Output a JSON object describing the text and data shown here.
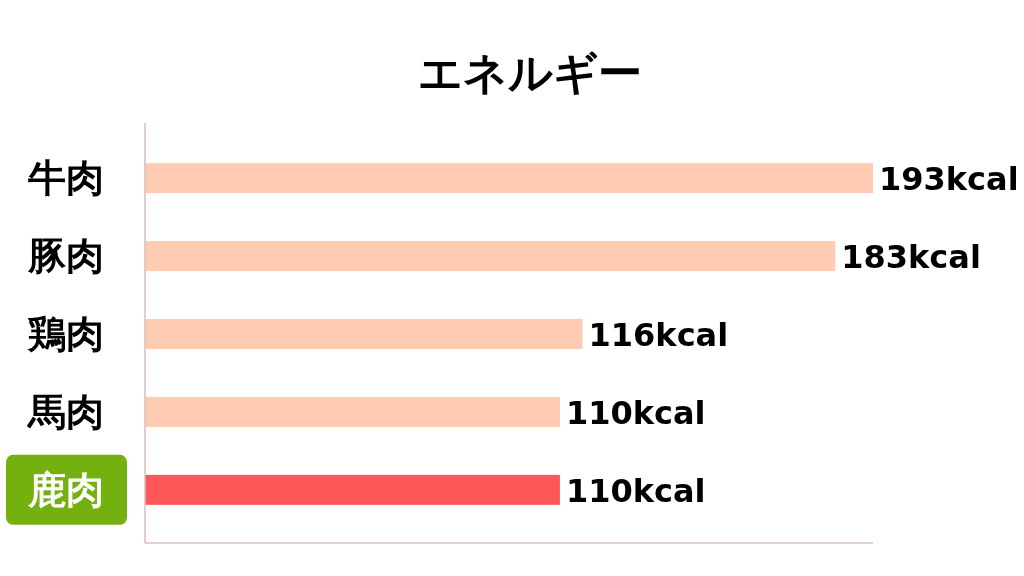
{
  "chart_data": {
    "type": "bar",
    "orientation": "horizontal",
    "title": "エネルギー",
    "categories": [
      "牛肉",
      "豚肉",
      "鶏肉",
      "馬肉",
      "鹿肉"
    ],
    "values": [
      193,
      183,
      116,
      110,
      110
    ],
    "colors": [
      "#ffccb3",
      "#ffccb3",
      "#ffccb3",
      "#ffccb3",
      "#ff5757"
    ],
    "value_labels": [
      "193kcal",
      "183kcal",
      "116kcal",
      "110kcal",
      "110kcal"
    ],
    "xlim": [
      0,
      193
    ],
    "tick_labels": "y"
  }
}
